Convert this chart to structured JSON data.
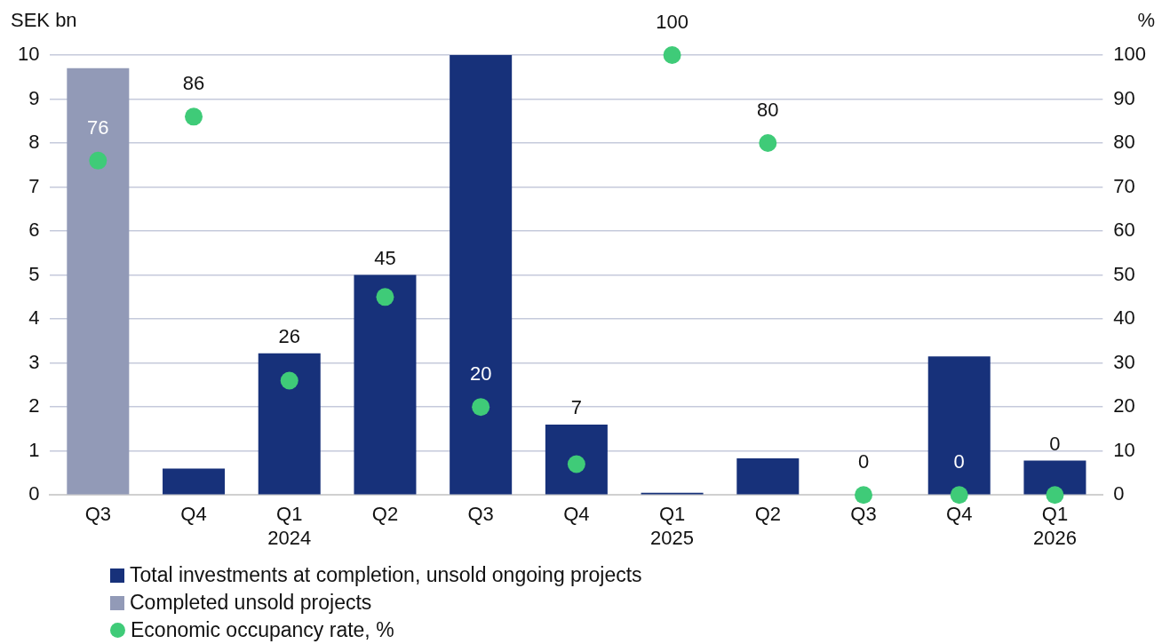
{
  "chart_data": {
    "type": "bar",
    "stacked": true,
    "ylabel": "SEK bn",
    "y2label": "%",
    "categories": [
      "Q3",
      "Q4",
      "Q1\n2024",
      "Q2",
      "Q3",
      "Q4",
      "Q1\n2025",
      "Q2",
      "Q3",
      "Q4",
      "Q1\n2026"
    ],
    "series": [
      {
        "name": "Total investments at completion, unsold ongoing projects",
        "color": "#17317a",
        "values": [
          null,
          0.6,
          3.22,
          5.0,
          10,
          1.6,
          0.05,
          0.83,
          null,
          3.15,
          0.78
        ]
      },
      {
        "name": "Completed unsold projects",
        "color": "#929ab7",
        "values": [
          9.7,
          null,
          null,
          null,
          null,
          null,
          null,
          null,
          null,
          null,
          null
        ]
      },
      {
        "name": "Economic occupancy rate, %",
        "type": "scatter",
        "axis": "y2",
        "color": "#3fcb78",
        "marker": "circle",
        "data_labels": true,
        "values": [
          76,
          86,
          26,
          45,
          20,
          7,
          100,
          80,
          0,
          0,
          0
        ]
      }
    ],
    "ylim": [
      0,
      10
    ],
    "yticks": [
      0,
      1,
      2,
      3,
      4,
      5,
      6,
      7,
      8,
      9,
      10
    ],
    "y2lim": [
      0,
      100
    ],
    "y2ticks": [
      0,
      10,
      20,
      30,
      40,
      50,
      60,
      70,
      80,
      90,
      100
    ],
    "grid": "y",
    "legend": "bottom"
  }
}
